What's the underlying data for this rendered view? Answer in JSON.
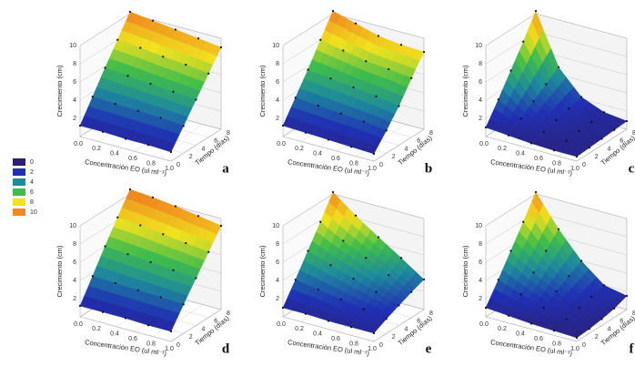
{
  "colorbar": {
    "levels": [
      0,
      2,
      4,
      6,
      8,
      10
    ],
    "colors": [
      "#2b1f78",
      "#1f30b4",
      "#1e8a9c",
      "#3fbd4a",
      "#f0e21e",
      "#f08a1e"
    ]
  },
  "chart_data": [
    {
      "type": "surface",
      "label": "a",
      "xlabel": "Concentración EO (ul ml⁻¹)",
      "ylabel": "Tiempo (días)",
      "zlabel": "Crecimiento (cm)",
      "x": [
        0,
        0.25,
        0.5,
        0.75,
        1
      ],
      "y": [
        0,
        2,
        4,
        6,
        8
      ],
      "z": [
        [
          1.2,
          1.2,
          1.1,
          1.1,
          1.0
        ],
        [
          3.5,
          3.4,
          3.3,
          3.2,
          3.0
        ],
        [
          5.8,
          5.6,
          5.4,
          5.2,
          5.0
        ],
        [
          8.0,
          7.8,
          7.5,
          7.3,
          7.0
        ],
        [
          10.2,
          9.9,
          9.6,
          9.3,
          9.0
        ]
      ],
      "xlim": [
        0,
        1
      ],
      "ylim": [
        0,
        8
      ],
      "zlim": [
        0,
        10
      ],
      "xticks": [
        {
          "value": 0,
          "label": "0.0"
        },
        0.2,
        0.4,
        0.6,
        0.8,
        {
          "value": 1,
          "label": "1.0"
        }
      ],
      "yticks": [
        0,
        2,
        4,
        6,
        8
      ],
      "zticks": [
        2,
        4,
        6,
        8,
        10
      ]
    },
    {
      "type": "surface",
      "label": "b",
      "xlabel": "Concentración EO (ul ml⁻¹)",
      "ylabel": "Tiempo (días)",
      "zlabel": "Crecimiento (cm)",
      "x": [
        0,
        0.25,
        0.5,
        0.75,
        1
      ],
      "y": [
        0,
        2,
        4,
        6,
        8
      ],
      "z": [
        [
          1.2,
          1.1,
          1.0,
          0.9,
          0.8
        ],
        [
          3.4,
          3.2,
          3.0,
          2.8,
          2.5
        ],
        [
          5.6,
          5.3,
          5.0,
          4.7,
          4.3
        ],
        [
          8.0,
          7.5,
          7.0,
          6.8,
          6.5
        ],
        [
          10.3,
          9.6,
          8.9,
          8.6,
          8.5
        ]
      ],
      "xlim": [
        0,
        1
      ],
      "ylim": [
        0,
        8
      ],
      "zlim": [
        0,
        10
      ],
      "xticks": [
        {
          "value": 0,
          "label": "0.0"
        },
        0.2,
        0.4,
        0.6,
        0.8,
        {
          "value": 1,
          "label": "1.0"
        }
      ],
      "yticks": [
        0,
        2,
        4,
        6,
        8
      ],
      "zticks": [
        2,
        4,
        6,
        8,
        10
      ]
    },
    {
      "type": "surface",
      "label": "c",
      "xlabel": "Concentración EO (ul ml⁻¹)",
      "ylabel": "Tiempo (días)",
      "zlabel": "Crecimiento (cm)",
      "x": [
        0,
        0.25,
        0.5,
        0.75,
        1
      ],
      "y": [
        0,
        2,
        4,
        6,
        8
      ],
      "z": [
        [
          1.0,
          0.8,
          0.6,
          0.5,
          0.5
        ],
        [
          3.2,
          1.8,
          1.0,
          0.7,
          0.6
        ],
        [
          5.5,
          2.8,
          1.4,
          0.9,
          0.7
        ],
        [
          7.8,
          3.8,
          1.8,
          1.0,
          0.8
        ],
        [
          10.3,
          4.8,
          2.2,
          1.2,
          0.9
        ]
      ],
      "xlim": [
        0,
        1
      ],
      "ylim": [
        0,
        8
      ],
      "zlim": [
        0,
        10
      ],
      "xticks": [
        {
          "value": 0,
          "label": "0.0"
        },
        0.2,
        0.4,
        0.6,
        0.8,
        {
          "value": 1,
          "label": "1.0"
        }
      ],
      "yticks": [
        0,
        2,
        4,
        6,
        8
      ],
      "zticks": [
        2,
        4,
        6,
        8,
        10
      ]
    },
    {
      "type": "surface",
      "label": "d",
      "xlabel": "Concentración EO (ul ml⁻¹)",
      "ylabel": "Tiempo (días)",
      "zlabel": "Crecimiento (cm)",
      "x": [
        0,
        0.25,
        0.5,
        0.75,
        1
      ],
      "y": [
        0,
        2,
        4,
        6,
        8
      ],
      "z": [
        [
          1.2,
          1.2,
          1.2,
          1.1,
          1.1
        ],
        [
          3.6,
          3.5,
          3.4,
          3.3,
          3.2
        ],
        [
          6.0,
          5.8,
          5.6,
          5.4,
          5.2
        ],
        [
          8.3,
          8.1,
          7.8,
          7.5,
          7.2
        ],
        [
          10.5,
          10.3,
          10.0,
          9.6,
          9.2
        ]
      ],
      "xlim": [
        0,
        1
      ],
      "ylim": [
        0,
        8
      ],
      "zlim": [
        0,
        10
      ],
      "xticks": [
        {
          "value": 0,
          "label": "0.0"
        },
        0.2,
        0.4,
        0.6,
        0.8,
        {
          "value": 1,
          "label": "1.0"
        }
      ],
      "yticks": [
        0,
        2,
        4,
        6,
        8
      ],
      "zticks": [
        2,
        4,
        6,
        8,
        10
      ]
    },
    {
      "type": "surface",
      "label": "e",
      "xlabel": "Concentración EO (ul ml⁻¹)",
      "ylabel": "Tiempo (días)",
      "zlabel": "Crecimiento (cm)",
      "x": [
        0,
        0.25,
        0.5,
        0.75,
        1
      ],
      "y": [
        0,
        2,
        4,
        6,
        8
      ],
      "z": [
        [
          1.0,
          1.0,
          0.9,
          0.9,
          0.9
        ],
        [
          3.2,
          2.8,
          2.4,
          2.0,
          1.6
        ],
        [
          5.5,
          4.6,
          3.8,
          3.0,
          2.2
        ],
        [
          7.8,
          6.4,
          5.2,
          4.0,
          2.8
        ],
        [
          10.2,
          8.3,
          6.6,
          5.0,
          3.3
        ]
      ],
      "xlim": [
        0,
        1
      ],
      "ylim": [
        0,
        8
      ],
      "zlim": [
        0,
        10
      ],
      "xticks": [
        {
          "value": 0,
          "label": "0.0"
        },
        0.2,
        0.4,
        0.6,
        0.8,
        {
          "value": 1,
          "label": "1.0"
        }
      ],
      "yticks": [
        0,
        2,
        4,
        6,
        8
      ],
      "zticks": [
        2,
        4,
        6,
        8,
        10
      ]
    },
    {
      "type": "surface",
      "label": "f",
      "xlabel": "Concentración EO (ul ml⁻¹)",
      "ylabel": "Tiempo (días)",
      "zlabel": "Crecimiento (cm)",
      "x": [
        0,
        0.25,
        0.5,
        0.75,
        1
      ],
      "y": [
        0,
        2,
        4,
        6,
        8
      ],
      "z": [
        [
          1.0,
          0.8,
          0.6,
          0.5,
          0.4
        ],
        [
          3.2,
          2.3,
          1.5,
          0.9,
          0.5
        ],
        [
          5.5,
          3.8,
          2.4,
          1.3,
          0.7
        ],
        [
          7.8,
          5.3,
          3.2,
          1.6,
          1.0
        ],
        [
          10.2,
          6.8,
          4.0,
          2.0,
          1.5
        ]
      ],
      "xlim": [
        0,
        1
      ],
      "ylim": [
        0,
        8
      ],
      "zlim": [
        0,
        10
      ],
      "xticks": [
        {
          "value": 0,
          "label": "0.0"
        },
        0.2,
        0.4,
        0.6,
        0.8,
        {
          "value": 1,
          "label": "1.0"
        }
      ],
      "yticks": [
        0,
        2,
        4,
        6,
        8
      ],
      "zticks": [
        2,
        4,
        6,
        8,
        10
      ]
    }
  ]
}
